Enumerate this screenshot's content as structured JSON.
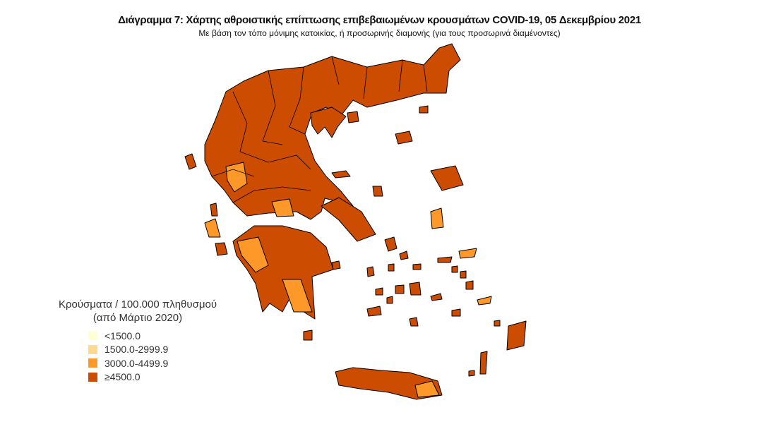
{
  "title": "Διάγραμμα 7: Χάρτης αθροιστικής επίπτωσης επιβεβαιωμένων κρουσμάτων COVID-19, 05 Δεκεμβρίου 2021",
  "subtitle": "Με βάση τον τόπο μόνιμης κατοικίας, ή προσωρινής διαμονής (για τους προσωρινά διαμένοντες)",
  "legend": {
    "title_line1": "Κρούσματα / 100.000 πληθυσμού",
    "title_line2": "(από Μάρτιο 2020)",
    "classes": [
      {
        "label": "<1500.0",
        "color": "#ffffd4"
      },
      {
        "label": "1500.0-2999.9",
        "color": "#fed98e"
      },
      {
        "label": "3000.0-4499.9",
        "color": "#fe9929"
      },
      {
        "label": "≥4500.0",
        "color": "#cc4c02"
      }
    ]
  },
  "map": {
    "border_color": "#000000",
    "classes_present": [
      "3000.0-4499.9",
      "≥4500.0"
    ]
  }
}
